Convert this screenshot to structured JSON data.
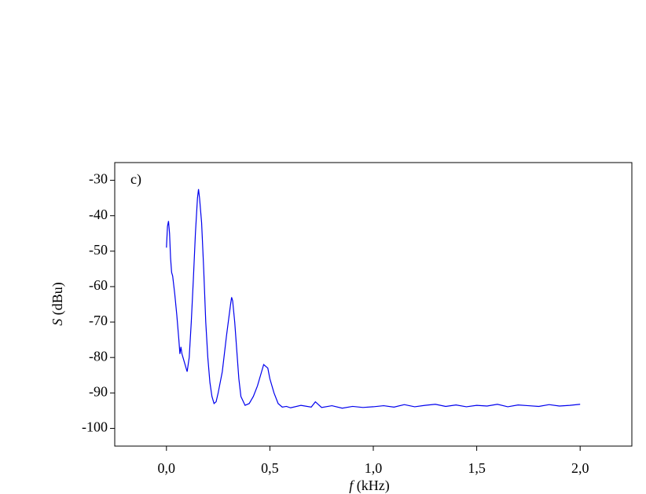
{
  "chart_data": {
    "type": "line",
    "annotation": "c)",
    "xlabel_parts": [
      "f",
      "(kHz)"
    ],
    "ylabel_parts": [
      "S",
      "(dBu)"
    ],
    "xlim": [
      -0.25,
      2.25
    ],
    "ylim": [
      -105,
      -25
    ],
    "xticks": [
      {
        "value": 0,
        "label": "0,0"
      },
      {
        "value": 0.5,
        "label": "0,5"
      },
      {
        "value": 1,
        "label": "1,0"
      },
      {
        "value": 1.5,
        "label": "1,5"
      },
      {
        "value": 2,
        "label": "2,0"
      }
    ],
    "yticks": [
      -100,
      -90,
      -80,
      -70,
      -60,
      -50,
      -40,
      -30
    ],
    "grid": false,
    "series": [
      {
        "color": "#0000ee",
        "x": [
          0,
          0.005,
          0.01,
          0.015,
          0.02,
          0.025,
          0.03,
          0.04,
          0.05,
          0.06,
          0.065,
          0.07,
          0.075,
          0.08,
          0.09,
          0.1,
          0.11,
          0.12,
          0.13,
          0.14,
          0.15,
          0.155,
          0.16,
          0.17,
          0.18,
          0.19,
          0.2,
          0.21,
          0.22,
          0.23,
          0.24,
          0.25,
          0.27,
          0.29,
          0.31,
          0.315,
          0.32,
          0.33,
          0.34,
          0.35,
          0.36,
          0.38,
          0.4,
          0.42,
          0.44,
          0.46,
          0.47,
          0.48,
          0.49,
          0.5,
          0.52,
          0.54,
          0.56,
          0.58,
          0.6,
          0.65,
          0.7,
          0.72,
          0.75,
          0.8,
          0.85,
          0.9,
          0.95,
          1,
          1.05,
          1.1,
          1.15,
          1.2,
          1.25,
          1.3,
          1.35,
          1.4,
          1.45,
          1.5,
          1.55,
          1.6,
          1.65,
          1.7,
          1.75,
          1.8,
          1.85,
          1.9,
          1.95,
          2
        ],
        "values": [
          -49,
          -43,
          -41.5,
          -45,
          -52,
          -56,
          -57,
          -62,
          -68,
          -75,
          -79,
          -77,
          -79,
          -80,
          -82,
          -84,
          -80,
          -70,
          -58,
          -45,
          -35,
          -32.5,
          -35,
          -42,
          -55,
          -70,
          -80,
          -87,
          -91,
          -93,
          -92.5,
          -90,
          -84,
          -74,
          -65,
          -63,
          -64,
          -70,
          -78,
          -86,
          -91,
          -93.5,
          -93,
          -91,
          -88,
          -84,
          -82,
          -82.5,
          -83,
          -86,
          -90,
          -93,
          -94,
          -93.8,
          -94.2,
          -93.5,
          -94,
          -92.5,
          -94.1,
          -93.6,
          -94.3,
          -93.8,
          -94.1,
          -93.9,
          -93.6,
          -94,
          -93.3,
          -93.9,
          -93.5,
          -93.2,
          -93.8,
          -93.4,
          -93.9,
          -93.5,
          -93.7,
          -93.2,
          -93.9,
          -93.4,
          -93.6,
          -93.8,
          -93.3,
          -93.7,
          -93.5,
          -93.2
        ]
      }
    ]
  }
}
